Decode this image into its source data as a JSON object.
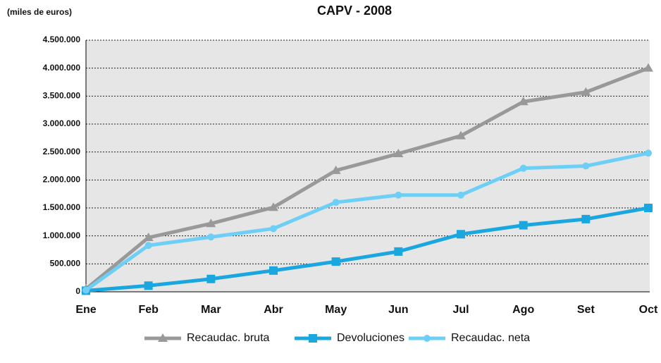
{
  "chart_data": {
    "type": "line",
    "title": "CAPV - 2008",
    "y_axis_label": "(miles de euros)",
    "categories": [
      "Ene",
      "Feb",
      "Mar",
      "Abr",
      "May",
      "Jun",
      "Jul",
      "Ago",
      "Set",
      "Oct"
    ],
    "series": [
      {
        "name": "Recaudac. bruta",
        "color": "#999999",
        "marker": "triangle",
        "values": [
          50000,
          970000,
          1220000,
          1510000,
          2170000,
          2470000,
          2790000,
          3400000,
          3570000,
          4000000
        ]
      },
      {
        "name": "Devoluciones",
        "color": "#1aa6df",
        "marker": "square",
        "values": [
          20000,
          110000,
          230000,
          380000,
          540000,
          720000,
          1030000,
          1190000,
          1300000,
          1500000
        ]
      },
      {
        "name": "Recaudac. neta",
        "color": "#6dcff6",
        "marker": "circle",
        "values": [
          30000,
          830000,
          980000,
          1130000,
          1600000,
          1730000,
          1730000,
          2210000,
          2250000,
          2480000
        ]
      }
    ],
    "ylim": [
      0,
      4500000
    ],
    "yticks": [
      0,
      {
        "value": 500000,
        "label": "500.000"
      },
      {
        "value": 1000000,
        "label": "1.000.000"
      },
      {
        "value": 1500000,
        "label": "1.500.000"
      },
      {
        "value": 2000000,
        "label": "2.000.000"
      },
      {
        "value": 2500000,
        "label": "2.500.000"
      },
      {
        "value": 3000000,
        "label": "3.000.000"
      },
      {
        "value": 3500000,
        "label": "3.500.000"
      },
      {
        "value": 4000000,
        "label": "4.000.000"
      },
      {
        "value": 4500000,
        "label": "4.500.000"
      }
    ],
    "grid": true
  }
}
